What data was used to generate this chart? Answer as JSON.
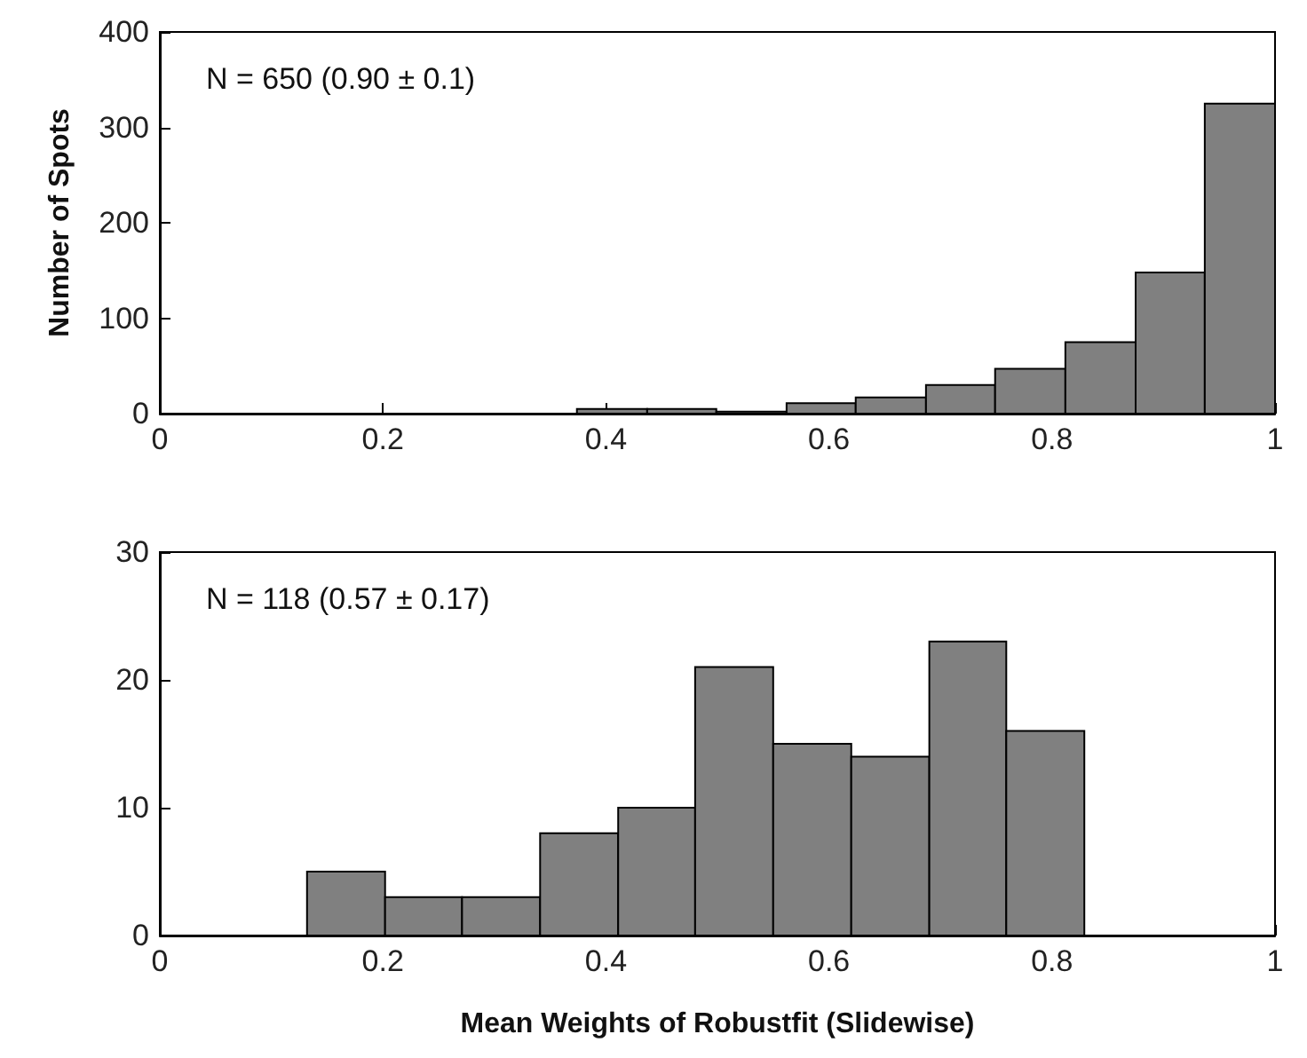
{
  "chart_data": [
    {
      "type": "histogram",
      "ylabel": "Number of Spots",
      "annotations": [
        "N = 650 (0.90 ± 0.1)"
      ],
      "color": "#808080",
      "bins": [
        0.374,
        0.437,
        0.499,
        0.562,
        0.624,
        0.687,
        0.749,
        0.812,
        0.875,
        0.937,
        1.0
      ],
      "values": [
        5,
        5,
        2,
        11,
        17,
        30,
        47,
        75,
        148,
        325
      ],
      "xlim": [
        0,
        1
      ],
      "xticks": [
        0,
        0.2,
        0.4,
        0.6,
        0.8,
        1
      ],
      "ylim": [
        0,
        400
      ],
      "yticks": [
        0,
        100,
        200,
        300,
        400
      ]
    },
    {
      "type": "histogram",
      "xlabel": "Mean Weights of Robustfit (Slidewise)",
      "annotations": [
        "N = 118 (0.57 ± 0.17)"
      ],
      "color": "#808080",
      "bins": [
        0.132,
        0.202,
        0.271,
        0.341,
        0.411,
        0.48,
        0.55,
        0.62,
        0.69,
        0.759,
        0.829
      ],
      "values": [
        5,
        3,
        3,
        8,
        10,
        21,
        15,
        14,
        23,
        16
      ],
      "xlim": [
        0,
        1
      ],
      "xticks": [
        0,
        0.2,
        0.4,
        0.6,
        0.8,
        1
      ],
      "ylim": [
        0,
        30
      ],
      "yticks": [
        0,
        10,
        20,
        30
      ]
    }
  ]
}
